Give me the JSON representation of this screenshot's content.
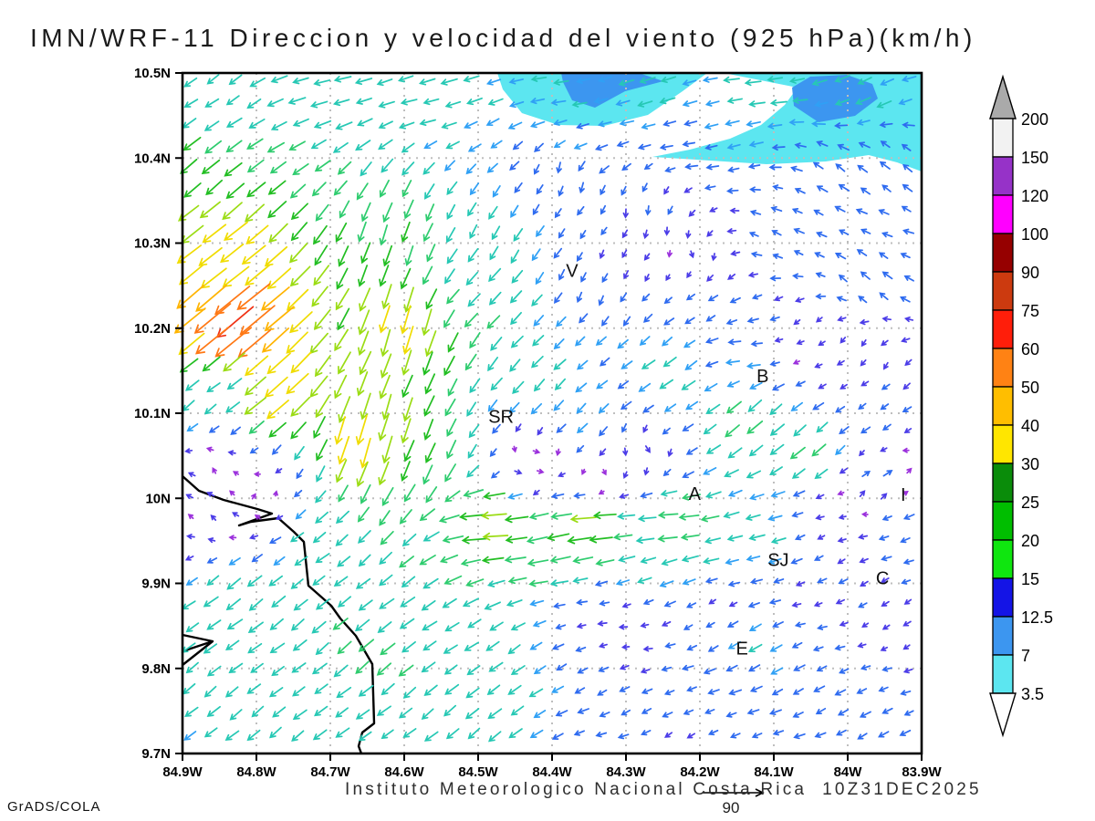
{
  "title": "IMN/WRF-11 Direccion y velocidad del viento (925 hPa)(km/h)",
  "credit": "GrADS/COLA",
  "footer": {
    "text": "Instituto Meteorologico Nacional Costa Rica  10Z31DEC2025"
  },
  "reference_vector": {
    "label": "90",
    "speed": 90
  },
  "chart_data": {
    "type": "vector_field",
    "title": "IMN/WRF-11 Direccion y velocidad del viento (925 hPa)(km/h)",
    "model": "IMN/WRF-11",
    "variable": "Direccion y velocidad del viento",
    "level": "925 hPa",
    "units": "km/h",
    "valid_time": "10Z31DEC2025",
    "institution": "Instituto Meteorologico Nacional Costa Rica",
    "reference_speed": 90,
    "x_axis": {
      "ticks": [
        "84.9W",
        "84.8W",
        "84.7W",
        "84.6W",
        "84.5W",
        "84.4W",
        "84.3W",
        "84.2W",
        "84.1W",
        "84W",
        "83.9W"
      ]
    },
    "y_axis": {
      "ticks": [
        "10.5N",
        "10.4N",
        "10.3N",
        "10.2N",
        "10.1N",
        "10N",
        "9.9N",
        "9.8N",
        "9.7N"
      ]
    },
    "grid": {
      "visible": true,
      "color": "#BEBEBE",
      "style": "dotted"
    },
    "colorbar": {
      "boundary_labels": [
        "200",
        "150",
        "120",
        "100",
        "90",
        "75",
        "60",
        "50",
        "40",
        "30",
        "25",
        "20",
        "15",
        "12.5",
        "7",
        "3.5"
      ],
      "segment_colors_top_to_bottom": [
        "#F2F2F2",
        "#9632C8",
        "#FF00FF",
        "#960000",
        "#CC3A0F",
        "#FF1E0A",
        "#FF8214",
        "#FFBE00",
        "#FFE600",
        "#0A8C0A",
        "#00BE00",
        "#0FE60F",
        "#1414E6",
        "#3C96F0",
        "#5CE6F0"
      ],
      "over_color": "#AAAAAA",
      "under_color": "#FFFFFF"
    },
    "stations": [
      {
        "label": "V",
        "xf": 0.527,
        "yf": 0.29
      },
      {
        "label": "SR",
        "xf": 0.431,
        "yf": 0.505
      },
      {
        "label": "B",
        "xf": 0.785,
        "yf": 0.445
      },
      {
        "label": "A",
        "xf": 0.693,
        "yf": 0.618
      },
      {
        "label": "I",
        "xf": 0.975,
        "yf": 0.619
      },
      {
        "label": "SJ",
        "xf": 0.806,
        "yf": 0.715
      },
      {
        "label": "C",
        "xf": 0.947,
        "yf": 0.742
      },
      {
        "label": "E",
        "xf": 0.757,
        "yf": 0.845
      }
    ],
    "coastline": [
      [
        [
          0,
          442
        ],
        [
          18,
          458
        ],
        [
          45,
          468
        ],
        [
          82,
          478
        ],
        [
          98,
          483
        ],
        [
          62,
          496
        ],
        [
          75,
          492
        ],
        [
          105,
          488
        ],
        [
          122,
          503
        ],
        [
          133,
          514
        ],
        [
          138,
          562
        ],
        [
          146,
          569
        ],
        [
          163,
          584
        ],
        [
          173,
          598
        ],
        [
          190,
          617
        ],
        [
          208,
          648
        ],
        [
          210,
          713
        ],
        [
          197,
          723
        ],
        [
          193,
          738
        ],
        [
          196,
          746
        ]
      ],
      [
        [
          0,
          616
        ],
        [
          33,
          623
        ],
        [
          0,
          634
        ]
      ],
      [
        [
          33,
          623
        ],
        [
          0,
          649
        ]
      ]
    ],
    "shaded_regions": [
      {
        "range": "3.5-7",
        "color": "#5CE6F0",
        "points": [
          [
            345,
            0
          ],
          [
            575,
            0
          ],
          [
            548,
            20
          ],
          [
            510,
            46
          ],
          [
            462,
            58
          ],
          [
            412,
            57
          ],
          [
            372,
            44
          ],
          [
            351,
            18
          ]
        ]
      },
      {
        "range": "7-12.5",
        "color": "#3C96F0",
        "points": [
          [
            415,
            0
          ],
          [
            500,
            0
          ],
          [
            527,
            9
          ],
          [
            485,
            20
          ],
          [
            452,
            38
          ],
          [
            427,
            30
          ],
          [
            417,
            10
          ]
        ]
      },
      {
        "range": "3.5-7",
        "color": "#5CE6F0",
        "points": [
          [
            593,
            0
          ],
          [
            810,
            0
          ],
          [
            810,
            108
          ],
          [
            783,
            98
          ],
          [
            752,
            90
          ],
          [
            705,
            97
          ],
          [
            640,
            100
          ],
          [
            578,
            96
          ],
          [
            515,
            92
          ],
          [
            556,
            84
          ],
          [
            600,
            72
          ],
          [
            634,
            57
          ],
          [
            660,
            35
          ],
          [
            674,
            16
          ]
        ]
      },
      {
        "range": "7-12.5",
        "color": "#3C96F0",
        "points": [
          [
            668,
            16
          ],
          [
            688,
            4
          ],
          [
            728,
            2
          ],
          [
            756,
            12
          ],
          [
            762,
            28
          ],
          [
            737,
            47
          ],
          [
            697,
            54
          ],
          [
            670,
            36
          ]
        ]
      }
    ],
    "arrow_speed_colors": [
      [
        3.5,
        "#9B30DC"
      ],
      [
        7,
        "#4B3CE8"
      ],
      [
        12.5,
        "#2E6BF0"
      ],
      [
        15,
        "#2FA0F5"
      ],
      [
        20,
        "#26C8B4"
      ],
      [
        25,
        "#2ECC6E"
      ],
      [
        30,
        "#22BE22"
      ],
      [
        36,
        "#9BDC14"
      ],
      [
        45,
        "#F0DC00"
      ],
      [
        55,
        "#FFB400"
      ],
      [
        65,
        "#FF7814"
      ],
      [
        9999,
        "#F03214"
      ]
    ],
    "wind_control_points": [
      [
        0.03,
        0.02,
        -13,
        -9
      ],
      [
        0.18,
        0.03,
        -18,
        -5
      ],
      [
        0.35,
        0.02,
        -17,
        -4
      ],
      [
        0.5,
        0.04,
        -15,
        -3
      ],
      [
        0.63,
        0.03,
        -16,
        -4
      ],
      [
        0.78,
        0.03,
        -17,
        -3
      ],
      [
        0.93,
        0.03,
        -15,
        -6
      ],
      [
        0.55,
        0.1,
        -13,
        -4
      ],
      [
        0.7,
        0.1,
        -12,
        -2
      ],
      [
        0.88,
        0.16,
        -9,
        7
      ],
      [
        0.97,
        0.13,
        -8,
        6
      ],
      [
        0.93,
        0.3,
        -8,
        6
      ],
      [
        0.8,
        0.25,
        -8,
        3
      ],
      [
        0.62,
        0.2,
        -1,
        -6
      ],
      [
        0.68,
        0.27,
        1,
        -3
      ],
      [
        0.57,
        0.3,
        -3,
        -7
      ],
      [
        0.52,
        0.15,
        -2,
        -9
      ],
      [
        0.02,
        0.15,
        -20,
        -16
      ],
      [
        0.04,
        0.26,
        -30,
        -24
      ],
      [
        0.07,
        0.37,
        -52,
        -42
      ],
      [
        0.12,
        0.47,
        -30,
        -26
      ],
      [
        0.05,
        0.47,
        -12,
        -10
      ],
      [
        0.05,
        0.57,
        -2,
        3
      ],
      [
        0.11,
        0.62,
        1,
        3
      ],
      [
        0.03,
        0.66,
        -3,
        2
      ],
      [
        0.28,
        0.25,
        -8,
        -25
      ],
      [
        0.3,
        0.38,
        -10,
        -36
      ],
      [
        0.27,
        0.52,
        -9,
        -30
      ],
      [
        0.25,
        0.54,
        -12,
        -42
      ],
      [
        0.33,
        0.57,
        -10,
        -22
      ],
      [
        0.42,
        0.22,
        -8,
        -13
      ],
      [
        0.4,
        0.34,
        -14,
        -15
      ],
      [
        0.48,
        0.44,
        -12,
        -12
      ],
      [
        0.55,
        0.5,
        -10,
        -9
      ],
      [
        0.47,
        0.58,
        6,
        -1
      ],
      [
        0.56,
        0.61,
        4,
        -2
      ],
      [
        0.62,
        0.56,
        3,
        -3
      ],
      [
        0.75,
        0.42,
        -13,
        -1
      ],
      [
        0.84,
        0.4,
        -3,
        -2
      ],
      [
        0.92,
        0.42,
        -3,
        -3
      ],
      [
        0.7,
        0.35,
        -8,
        -6
      ],
      [
        0.66,
        0.45,
        -14,
        -10
      ],
      [
        0.76,
        0.52,
        -17,
        -15
      ],
      [
        0.85,
        0.56,
        -16,
        -13
      ],
      [
        0.93,
        0.52,
        -7,
        -6
      ],
      [
        0.94,
        0.6,
        8,
        7
      ],
      [
        0.42,
        0.655,
        -33,
        -2
      ],
      [
        0.55,
        0.655,
        -37,
        -2
      ],
      [
        0.67,
        0.66,
        -25,
        -2
      ],
      [
        0.78,
        0.67,
        -16,
        -3
      ],
      [
        0.88,
        0.66,
        -4,
        -2
      ],
      [
        0.97,
        0.67,
        -9,
        -4
      ],
      [
        0.5,
        0.7,
        -25,
        -5
      ],
      [
        0.68,
        0.71,
        -17,
        -6
      ],
      [
        0.08,
        0.78,
        -16,
        -12
      ],
      [
        0.25,
        0.84,
        -16,
        -13
      ],
      [
        0.42,
        0.9,
        -14,
        -11
      ],
      [
        0.06,
        0.95,
        -13,
        -10
      ],
      [
        0.35,
        0.97,
        -13,
        -10
      ],
      [
        0.18,
        0.68,
        -14,
        -11
      ],
      [
        0.6,
        0.82,
        -4,
        -1
      ],
      [
        0.72,
        0.79,
        -4,
        -2
      ],
      [
        0.85,
        0.78,
        -6,
        -2
      ],
      [
        0.95,
        0.82,
        -4,
        -2
      ],
      [
        0.75,
        0.88,
        -11,
        -5
      ],
      [
        0.9,
        0.92,
        -9,
        -4
      ],
      [
        0.62,
        0.95,
        -8,
        -3
      ],
      [
        0.55,
        0.8,
        -7,
        -2
      ],
      [
        0.77,
        0.83,
        -13,
        -7
      ],
      [
        0.68,
        0.99,
        -5,
        -2
      ]
    ]
  }
}
